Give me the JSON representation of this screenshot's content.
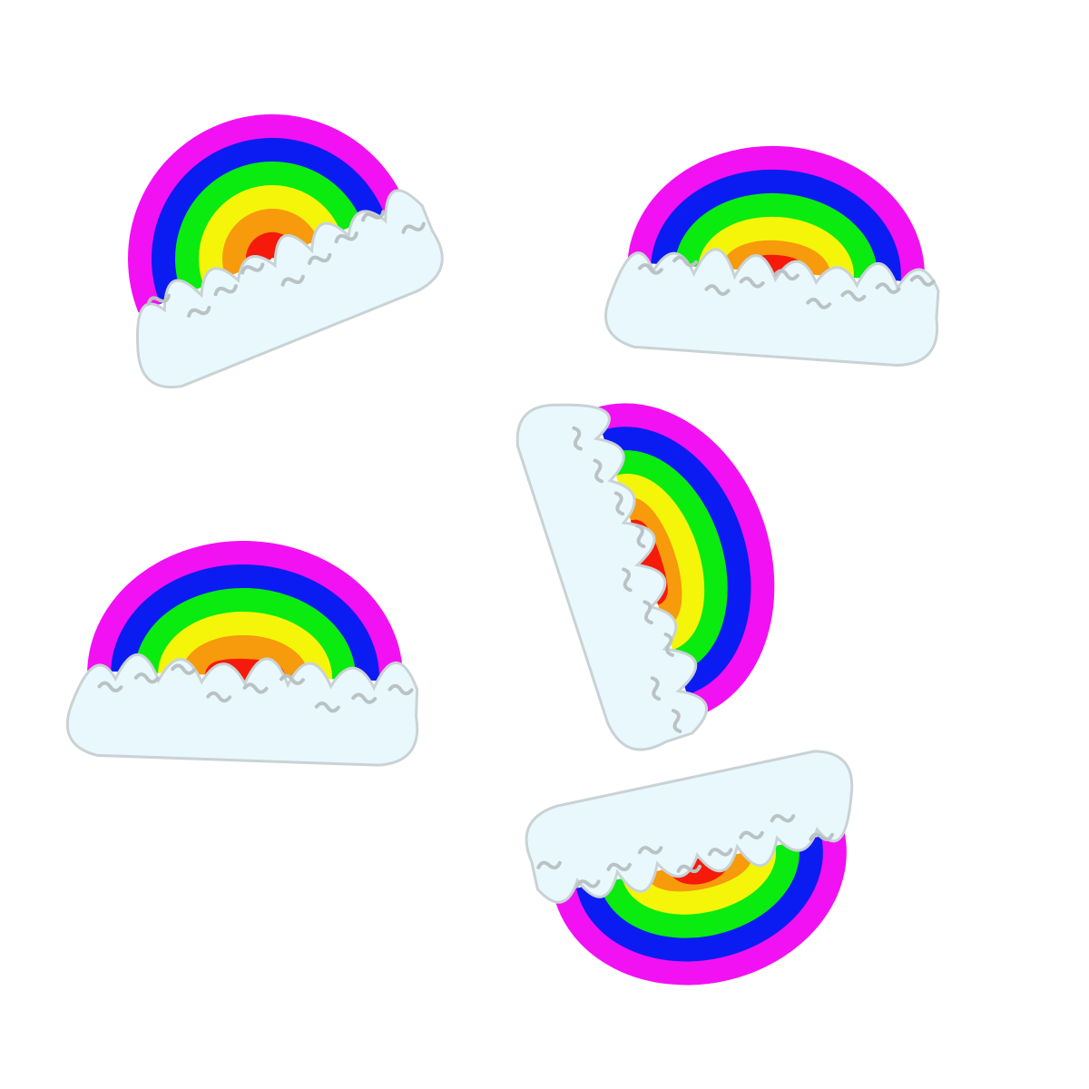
{
  "background_color": "#ffffff",
  "rainbow_band_colors": [
    "#f211f2",
    "#0b1cf2",
    "#0aeb10",
    "#f5f50a",
    "#f79a0b",
    "#f51a0a"
  ],
  "cloud": {
    "fill": "#e9f8fd",
    "outline": "#c9d2d4",
    "squiggle": "#b9c2c4"
  },
  "sticker_count": 5
}
